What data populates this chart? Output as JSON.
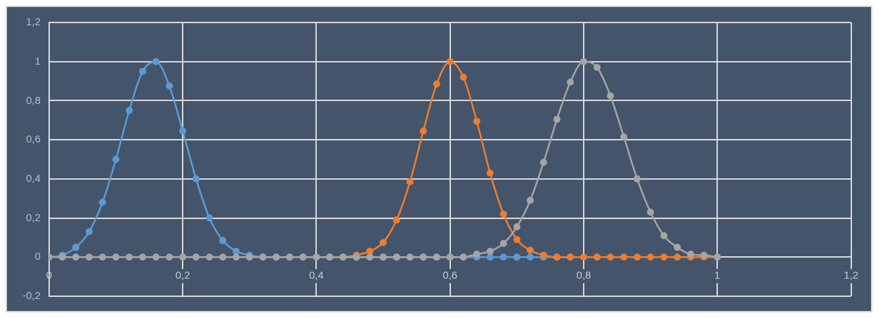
{
  "chart_data": {
    "type": "line",
    "x": [
      0,
      0.02,
      0.04,
      0.06,
      0.08,
      0.1,
      0.12,
      0.14,
      0.16,
      0.18,
      0.2,
      0.22,
      0.24,
      0.26,
      0.28,
      0.3,
      0.32,
      0.34,
      0.36,
      0.38,
      0.4,
      0.42,
      0.44,
      0.46,
      0.48,
      0.5,
      0.52,
      0.54,
      0.56,
      0.58,
      0.6,
      0.62,
      0.64,
      0.66,
      0.68,
      0.7,
      0.72,
      0.74,
      0.76,
      0.78,
      0.8,
      0.82,
      0.84,
      0.86,
      0.88,
      0.9,
      0.92,
      0.94,
      0.96,
      0.98,
      1
    ],
    "series": [
      {
        "color": "#5b9bd5",
        "values": [
          0,
          0.01,
          0.05,
          0.13,
          0.28,
          0.5,
          0.75,
          0.95,
          1,
          0.875,
          0.645,
          0.4,
          0.2,
          0.085,
          0.03,
          0.01,
          0,
          0,
          0,
          0,
          0,
          0,
          0,
          0,
          0,
          0,
          0,
          0,
          0,
          0,
          0,
          0,
          0,
          0,
          0,
          0,
          0,
          0,
          0,
          0,
          null,
          null,
          null,
          null,
          null,
          null,
          null,
          null,
          null,
          null,
          null
        ]
      },
      {
        "color": "#ed7d31",
        "values": [
          null,
          null,
          null,
          null,
          null,
          null,
          null,
          null,
          null,
          null,
          null,
          null,
          null,
          null,
          null,
          null,
          null,
          null,
          null,
          null,
          null,
          0,
          0,
          0.01,
          0.03,
          0.075,
          0.19,
          0.385,
          0.645,
          0.885,
          1,
          0.92,
          0.695,
          0.43,
          0.22,
          0.09,
          0.035,
          0.01,
          0,
          0,
          0,
          0,
          0,
          0,
          0,
          0,
          0,
          0,
          0,
          0,
          0
        ]
      },
      {
        "color": "#a5a5a5",
        "values": [
          0,
          0,
          0,
          0,
          0,
          0,
          0,
          0,
          0,
          0,
          0,
          0,
          0,
          0,
          0,
          0,
          0,
          0,
          0,
          0,
          0,
          0,
          0,
          0,
          0,
          0,
          0,
          0,
          0,
          0,
          0,
          0,
          0.015,
          0.03,
          0.07,
          0.155,
          0.29,
          0.485,
          0.705,
          0.895,
          1,
          0.97,
          0.825,
          0.615,
          0.4,
          0.23,
          0.11,
          0.05,
          0.015,
          0.01,
          0
        ]
      }
    ],
    "xlim": [
      0,
      1.2
    ],
    "xticks": [
      0,
      {
        "value": 0.2,
        "label": "0,2"
      },
      {
        "value": 0.4,
        "label": "0,4"
      },
      {
        "value": 0.6,
        "label": "0,6"
      },
      {
        "value": 0.8,
        "label": "0,8"
      },
      1,
      {
        "value": 1.2,
        "label": "1,2"
      }
    ],
    "ylim": [
      -0.2,
      1.2
    ],
    "yticks": [
      {
        "value": -0.2,
        "label": "-0,2"
      },
      0,
      {
        "value": 0.2,
        "label": "0,2"
      },
      {
        "value": 0.4,
        "label": "0,4"
      },
      {
        "value": 0.6,
        "label": "0,6"
      },
      {
        "value": 0.8,
        "label": "0,8"
      },
      1,
      {
        "value": 1.2,
        "label": "1,2"
      }
    ],
    "grid": true,
    "legend": false,
    "marker": "circle",
    "line_style": "solid"
  }
}
